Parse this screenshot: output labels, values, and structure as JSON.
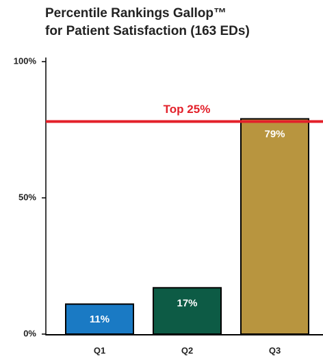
{
  "chart_data": {
    "type": "bar",
    "title": [
      "Percentile Rankings Gallop™",
      "for Patient Satisfaction (163 EDs)"
    ],
    "categories": [
      "Q1",
      "Q2",
      "Q3"
    ],
    "values": [
      11,
      17,
      79
    ],
    "value_labels": [
      "11%",
      "17%",
      "79%"
    ],
    "colors": [
      "#1a7ac4",
      "#0d5b45",
      "#b8953f"
    ],
    "ylim": [
      0,
      100
    ],
    "yticks": [
      {
        "value": 0,
        "label": "0%"
      },
      {
        "value": 50,
        "label": "50%"
      },
      {
        "value": 100,
        "label": "100%"
      }
    ],
    "reference_line": {
      "value": 78,
      "label": "Top 25%",
      "color": "#e3202a"
    }
  }
}
